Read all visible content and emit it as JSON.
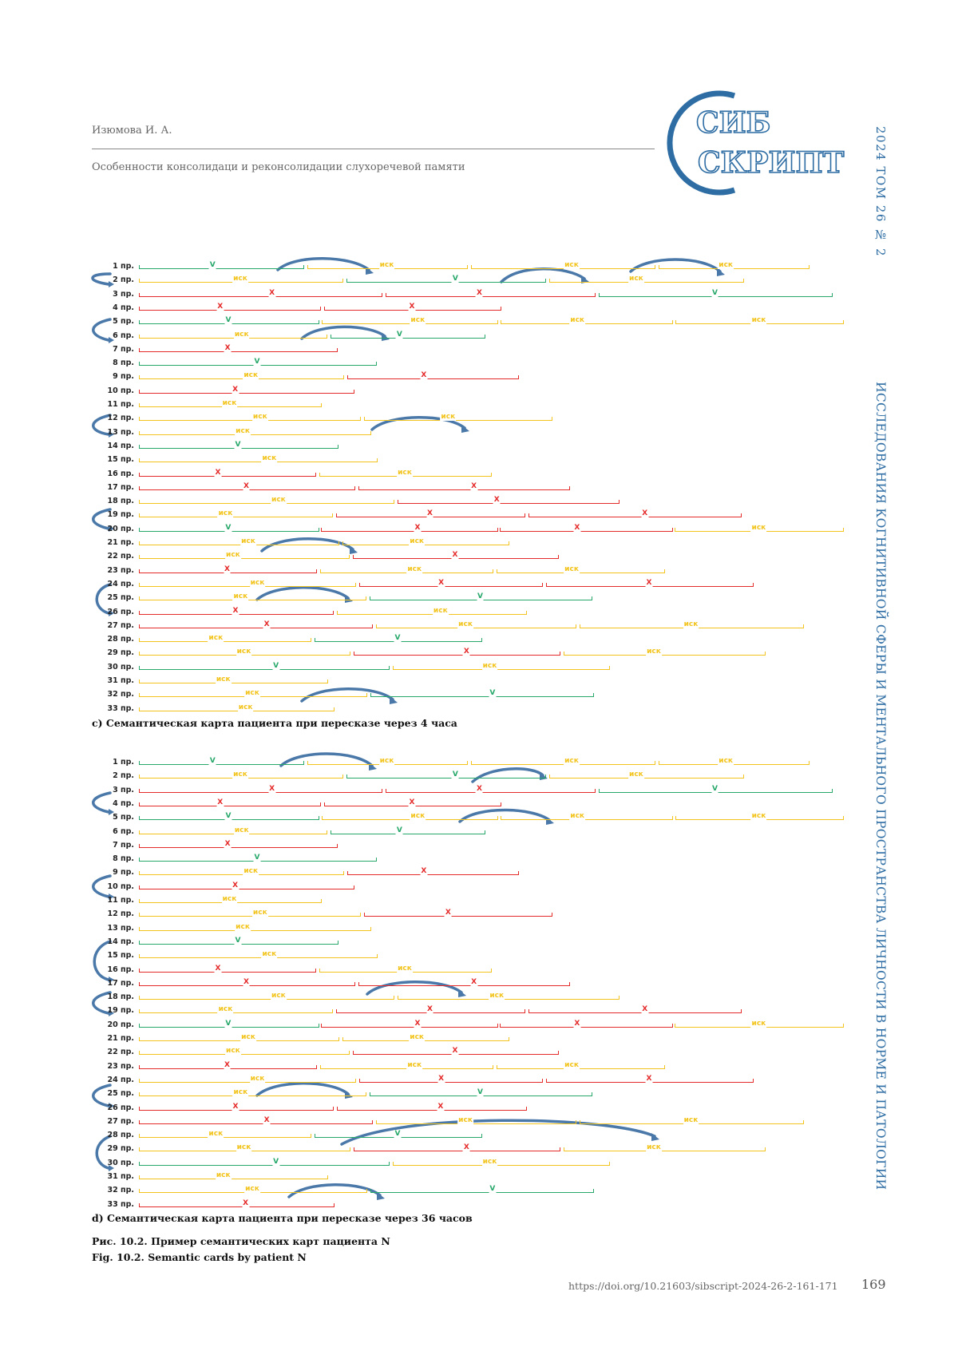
{
  "header": {
    "author": "Изюмова И. А.",
    "article_title": "Особенности консолидаци и реконсолидации слухоречевой памяти"
  },
  "logo": {
    "line1": "СИБ",
    "line2": "СКРИПТ",
    "ring_color": "#2e6da4"
  },
  "sidebar": {
    "issue": "2024 ТОМ 26 № 2",
    "subtitle": "ИССЛЕДОВАНИЯ КОГНИТИВНОЙ СФЕРЫ И МЕНТАЛЬНОГО ПРОСТРАНСТВА ЛИЧНОСТИ В НОРМЕ И ПАТОЛОГИИ"
  },
  "legend_marks": {
    "green": "V",
    "yellow": "иск",
    "red": "X"
  },
  "colors": {
    "green": "#27a86a",
    "yellow": "#f2c41d",
    "red": "#e52a2a",
    "arrow": "#4a78a8"
  },
  "map_c": {
    "caption": "c) Семантическая карта пациента при пересказе через 4 часа",
    "rows": [
      {
        "label": "1 пр.",
        "segs": [
          "g",
          "y",
          "y",
          "y"
        ]
      },
      {
        "label": "2 пр.",
        "segs": [
          "y",
          "g",
          "y"
        ]
      },
      {
        "label": "3 пр.",
        "segs": [
          "r",
          "r",
          "g"
        ]
      },
      {
        "label": "4 пр.",
        "segs": [
          "r",
          "r"
        ]
      },
      {
        "label": "5 пр.",
        "segs": [
          "g",
          "y",
          "y",
          "y"
        ]
      },
      {
        "label": "6 пр.",
        "segs": [
          "y",
          "g"
        ]
      },
      {
        "label": "7 пр.",
        "segs": [
          "r"
        ]
      },
      {
        "label": "8 пр.",
        "segs": [
          "g"
        ]
      },
      {
        "label": "9 пр.",
        "segs": [
          "y",
          "r"
        ]
      },
      {
        "label": "10 пр.",
        "segs": [
          "r"
        ]
      },
      {
        "label": "11 пр.",
        "segs": [
          "y"
        ]
      },
      {
        "label": "12 пр.",
        "segs": [
          "y",
          "y"
        ]
      },
      {
        "label": "13 пр.",
        "segs": [
          "y"
        ]
      },
      {
        "label": "14 пр.",
        "segs": [
          "g"
        ]
      },
      {
        "label": "15 пр.",
        "segs": [
          "y"
        ]
      },
      {
        "label": "16 пр.",
        "segs": [
          "r",
          "y"
        ]
      },
      {
        "label": "17 пр.",
        "segs": [
          "r",
          "r"
        ]
      },
      {
        "label": "18 пр.",
        "segs": [
          "y",
          "r"
        ]
      },
      {
        "label": "19 пр.",
        "segs": [
          "y",
          "r",
          "r"
        ]
      },
      {
        "label": "20 пр.",
        "segs": [
          "g",
          "r",
          "r",
          "y"
        ]
      },
      {
        "label": "21 пр.",
        "segs": [
          "y",
          "y"
        ]
      },
      {
        "label": "22 пр.",
        "segs": [
          "y",
          "r"
        ]
      },
      {
        "label": "23 пр.",
        "segs": [
          "r",
          "y",
          "y"
        ]
      },
      {
        "label": "24 пр.",
        "segs": [
          "y",
          "r",
          "r"
        ]
      },
      {
        "label": "25 пр.",
        "segs": [
          "y",
          "g"
        ]
      },
      {
        "label": "26 пр.",
        "segs": [
          "r",
          "y"
        ]
      },
      {
        "label": "27 пр.",
        "segs": [
          "r",
          "y",
          "y"
        ]
      },
      {
        "label": "28 пр.",
        "segs": [
          "y",
          "g"
        ]
      },
      {
        "label": "29 пр.",
        "segs": [
          "y",
          "r",
          "y"
        ]
      },
      {
        "label": "30 пр.",
        "segs": [
          "g",
          "y"
        ]
      },
      {
        "label": "31 пр.",
        "segs": [
          "y"
        ]
      },
      {
        "label": "32 пр.",
        "segs": [
          "y",
          "g"
        ]
      },
      {
        "label": "33 пр.",
        "segs": [
          "y"
        ]
      }
    ]
  },
  "map_d": {
    "caption": "d) Семантическая карта пациента при пересказе через 36 часов",
    "rows": [
      {
        "label": "1 пр.",
        "segs": [
          "g",
          "y",
          "y",
          "y"
        ]
      },
      {
        "label": "2 пр.",
        "segs": [
          "y",
          "g",
          "y"
        ]
      },
      {
        "label": "3 пр.",
        "segs": [
          "r",
          "r",
          "g"
        ]
      },
      {
        "label": "4 пр.",
        "segs": [
          "r",
          "r"
        ]
      },
      {
        "label": "5 пр.",
        "segs": [
          "g",
          "y",
          "y",
          "y"
        ]
      },
      {
        "label": "6 пр.",
        "segs": [
          "y",
          "g"
        ]
      },
      {
        "label": "7 пр.",
        "segs": [
          "r"
        ]
      },
      {
        "label": "8 пр.",
        "segs": [
          "g"
        ]
      },
      {
        "label": "9 пр.",
        "segs": [
          "y",
          "r"
        ]
      },
      {
        "label": "10 пр.",
        "segs": [
          "r"
        ]
      },
      {
        "label": "11 пр.",
        "segs": [
          "y"
        ]
      },
      {
        "label": "12 пр.",
        "segs": [
          "y",
          "r"
        ]
      },
      {
        "label": "13 пр.",
        "segs": [
          "y"
        ]
      },
      {
        "label": "14 пр.",
        "segs": [
          "g"
        ]
      },
      {
        "label": "15 пр.",
        "segs": [
          "y"
        ]
      },
      {
        "label": "16 пр.",
        "segs": [
          "r",
          "y"
        ]
      },
      {
        "label": "17 пр.",
        "segs": [
          "r",
          "r"
        ]
      },
      {
        "label": "18 пр.",
        "segs": [
          "y",
          "y"
        ]
      },
      {
        "label": "19 пр.",
        "segs": [
          "y",
          "r",
          "r"
        ]
      },
      {
        "label": "20 пр.",
        "segs": [
          "g",
          "r",
          "r",
          "y"
        ]
      },
      {
        "label": "21 пр.",
        "segs": [
          "y",
          "y"
        ]
      },
      {
        "label": "22 пр.",
        "segs": [
          "y",
          "r"
        ]
      },
      {
        "label": "23 пр.",
        "segs": [
          "r",
          "y",
          "y"
        ]
      },
      {
        "label": "24 пр.",
        "segs": [
          "y",
          "r",
          "r"
        ]
      },
      {
        "label": "25 пр.",
        "segs": [
          "y",
          "g"
        ]
      },
      {
        "label": "26 пр.",
        "segs": [
          "r",
          "r"
        ]
      },
      {
        "label": "27 пр.",
        "segs": [
          "r",
          "y",
          "y"
        ]
      },
      {
        "label": "28 пр.",
        "segs": [
          "y",
          "g"
        ]
      },
      {
        "label": "29 пр.",
        "segs": [
          "y",
          "r",
          "y"
        ]
      },
      {
        "label": "30 пр.",
        "segs": [
          "g",
          "y"
        ]
      },
      {
        "label": "31 пр.",
        "segs": [
          "y"
        ]
      },
      {
        "label": "32 пр.",
        "segs": [
          "y",
          "g"
        ]
      },
      {
        "label": "33 пр.",
        "segs": [
          "r"
        ]
      }
    ]
  },
  "figure": {
    "caption_ru": "Рис. 10.2. Пример семантических карт пациента N",
    "caption_en": "Fig. 10.2. Semantic cards by patient N"
  },
  "footer": {
    "doi": "https://doi.org/10.21603/sibscript-2024-26-2-161-171",
    "page": "169"
  }
}
